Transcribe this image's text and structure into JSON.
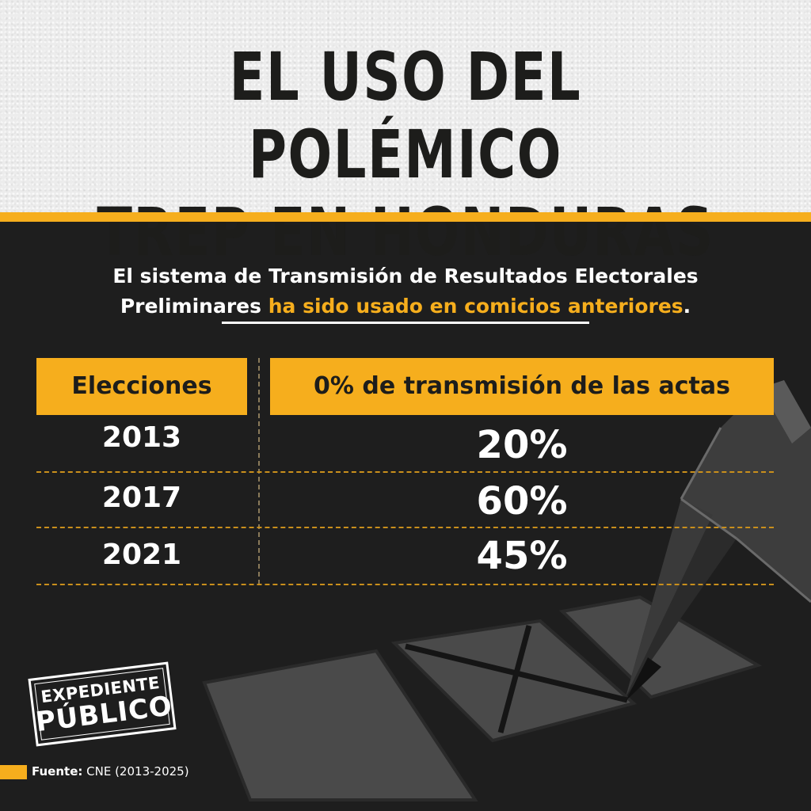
{
  "header": {
    "title_line1": "EL USO DEL POLÉMICO",
    "title_line2": "TREP EN HONDURAS"
  },
  "intro": {
    "part1": "El sistema de Transmisión de Resultados Electorales",
    "part2": "Preliminares ",
    "highlight": "ha sido usado en comicios anteriores",
    "end": "."
  },
  "table": {
    "headers": [
      "Elecciones",
      "0% de transmisión de las actas"
    ],
    "rows": [
      {
        "year": "2013",
        "value": "20%"
      },
      {
        "year": "2017",
        "value": "60%"
      },
      {
        "year": "2021",
        "value": "45%"
      }
    ]
  },
  "logo": {
    "line1": "EXPEDIENTE",
    "line2": "PÚBLICO"
  },
  "source": {
    "label": "Fuente:",
    "text": " CNE (2013-2025)"
  },
  "colors": {
    "accent": "#f6ae1d",
    "background": "#1e1e1e",
    "header_bg": "#ececec"
  },
  "icons": {
    "illustration": "pencil-marking-ballot-icon"
  }
}
